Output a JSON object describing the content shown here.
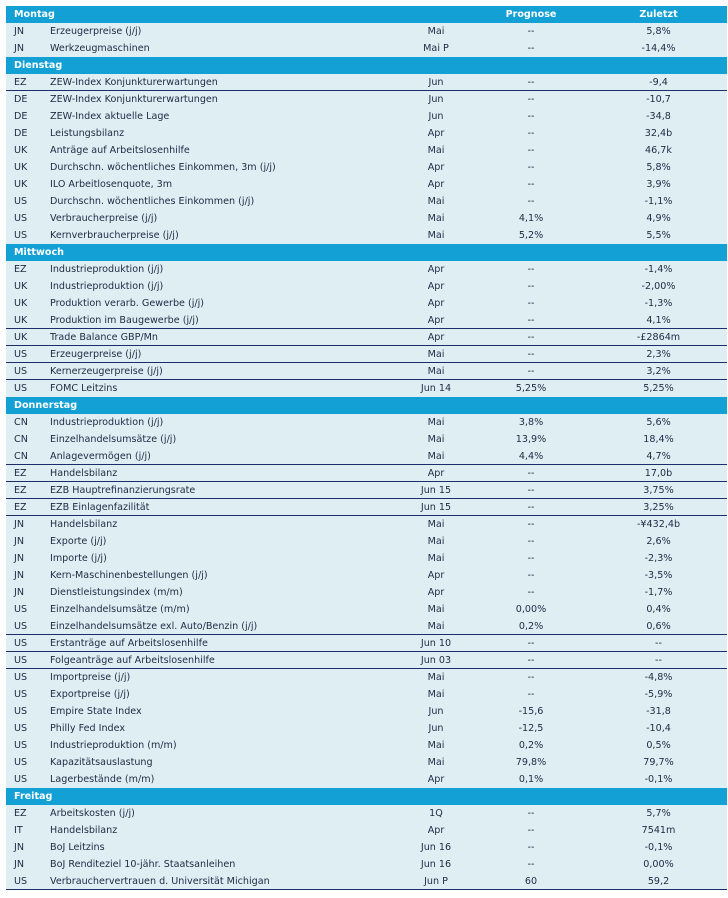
{
  "columns": {
    "prognose": "Prognose",
    "zuletzt": "Zuletzt"
  },
  "colors": {
    "header": "#13a0d4",
    "row_bg": "#deeef3",
    "separator": "#1c2d6b"
  },
  "days": [
    {
      "day": "Montag",
      "rows": [
        {
          "c": "JN",
          "n": "Erzeugerpreise (j/j)",
          "p": "Mai",
          "f": "--",
          "l": "5,8%"
        },
        {
          "c": "JN",
          "n": "Werkzeugmaschinen",
          "p": "Mai P",
          "f": "--",
          "l": "-14,4%"
        }
      ]
    },
    {
      "day": "Dienstag",
      "rows": [
        {
          "c": "EZ",
          "n": "ZEW-Index Konjunkturerwartungen",
          "p": "Jun",
          "f": "--",
          "l": "-9,4",
          "sep": true
        },
        {
          "c": "DE",
          "n": "ZEW-Index Konjunkturerwartungen",
          "p": "Jun",
          "f": "--",
          "l": "-10,7"
        },
        {
          "c": "DE",
          "n": "ZEW-Index aktuelle Lage",
          "p": "Jun",
          "f": "--",
          "l": "-34,8"
        },
        {
          "c": "DE",
          "n": "Leistungsbilanz",
          "p": "Apr",
          "f": "--",
          "l": "32,4b"
        },
        {
          "c": "UK",
          "n": "Anträge auf Arbeitslosenhilfe",
          "p": "Mai",
          "f": "--",
          "l": "46,7k"
        },
        {
          "c": "UK",
          "n": "Durchschn. wöchentliches Einkommen, 3m (j/j)",
          "p": "Apr",
          "f": "--",
          "l": "5,8%"
        },
        {
          "c": "UK",
          "n": "ILO Arbeitlosenquote, 3m",
          "p": "Apr",
          "f": "--",
          "l": "3,9%"
        },
        {
          "c": "US",
          "n": "Durchschn. wöchentliches Einkommen (j/j)",
          "p": "Mai",
          "f": "--",
          "l": "-1,1%"
        },
        {
          "c": "US",
          "n": "Verbraucherpreise (j/j)",
          "p": "Mai",
          "f": "4,1%",
          "l": "4,9%"
        },
        {
          "c": "US",
          "n": "Kernverbraucherpreise (j/j)",
          "p": "Mai",
          "f": "5,2%",
          "l": "5,5%"
        }
      ]
    },
    {
      "day": "Mittwoch",
      "rows": [
        {
          "c": "EZ",
          "n": "Industrieproduktion (j/j)",
          "p": "Apr",
          "f": "--",
          "l": "-1,4%"
        },
        {
          "c": "UK",
          "n": "Industrieproduktion (j/j)",
          "p": "Apr",
          "f": "--",
          "l": "-2,00%"
        },
        {
          "c": "UK",
          "n": "Produktion verarb. Gewerbe (j/j)",
          "p": "Apr",
          "f": "--",
          "l": "-1,3%"
        },
        {
          "c": "UK",
          "n": "Produktion im Baugewerbe (j/j)",
          "p": "Apr",
          "f": "--",
          "l": "4,1%",
          "sep": true
        },
        {
          "c": "UK",
          "n": "Trade Balance GBP/Mn",
          "p": "Apr",
          "f": "--",
          "l": "-£2864m",
          "sep": true
        },
        {
          "c": "US",
          "n": "Erzeugerpreise (j/j)",
          "p": "Mai",
          "f": "--",
          "l": "2,3%",
          "sep": true
        },
        {
          "c": "US",
          "n": "Kernerzeugerpreise (j/j)",
          "p": "Mai",
          "f": "--",
          "l": "3,2%",
          "sep": true
        },
        {
          "c": "US",
          "n": "FOMC Leitzins",
          "p": "Jun 14",
          "f": "5,25%",
          "l": "5,25%"
        }
      ]
    },
    {
      "day": "Donnerstag",
      "rows": [
        {
          "c": "CN",
          "n": "Industrieproduktion (j/j)",
          "p": "Mai",
          "f": "3,8%",
          "l": "5,6%"
        },
        {
          "c": "CN",
          "n": "Einzelhandelsumsätze (j/j)",
          "p": "Mai",
          "f": "13,9%",
          "l": "18,4%"
        },
        {
          "c": "CN",
          "n": "Anlagevermögen (j/j)",
          "p": "Mai",
          "f": "4,4%",
          "l": "4,7%",
          "sep": true
        },
        {
          "c": "EZ",
          "n": "Handelsbilanz",
          "p": "Apr",
          "f": "--",
          "l": "17,0b",
          "sep": true
        },
        {
          "c": "EZ",
          "n": "EZB Hauptrefinanzierungsrate",
          "p": "Jun 15",
          "f": "--",
          "l": "3,75%",
          "sep": true
        },
        {
          "c": "EZ",
          "n": "EZB Einlagenfazilität",
          "p": "Jun 15",
          "f": "--",
          "l": "3,25%",
          "sep": true
        },
        {
          "c": "JN",
          "n": "Handelsbilanz",
          "p": "Mai",
          "f": "--",
          "l": "-¥432,4b"
        },
        {
          "c": "JN",
          "n": "Exporte (j/j)",
          "p": "Mai",
          "f": "--",
          "l": "2,6%"
        },
        {
          "c": "JN",
          "n": "Importe (j/j)",
          "p": "Mai",
          "f": "--",
          "l": "-2,3%"
        },
        {
          "c": "JN",
          "n": "Kern-Maschinenbestellungen (j/j)",
          "p": "Apr",
          "f": "--",
          "l": "-3,5%"
        },
        {
          "c": "JN",
          "n": "Dienstleistungsindex (m/m)",
          "p": "Apr",
          "f": "--",
          "l": "-1,7%"
        },
        {
          "c": "US",
          "n": "Einzelhandelsumsätze (m/m)",
          "p": "Mai",
          "f": "0,00%",
          "l": "0,4%"
        },
        {
          "c": "US",
          "n": "Einzelhandelsumsätze exl. Auto/Benzin (j/j)",
          "p": "Mai",
          "f": "0,2%",
          "l": "0,6%",
          "sep": true
        },
        {
          "c": "US",
          "n": "Erstanträge auf Arbeitslosenhilfe",
          "p": "Jun 10",
          "f": "--",
          "l": "--",
          "sep": true
        },
        {
          "c": "US",
          "n": "Folgeanträge auf Arbeitslosenhilfe",
          "p": "Jun 03",
          "f": "--",
          "l": "--",
          "sep": true
        },
        {
          "c": "US",
          "n": "Importpreise (j/j)",
          "p": "Mai",
          "f": "--",
          "l": "-4,8%"
        },
        {
          "c": "US",
          "n": "Exportpreise (j/j)",
          "p": "Mai",
          "f": "--",
          "l": "-5,9%"
        },
        {
          "c": "US",
          "n": "Empire State Index",
          "p": "Jun",
          "f": "-15,6",
          "l": "-31,8"
        },
        {
          "c": "US",
          "n": "Philly Fed Index",
          "p": "Jun",
          "f": "-12,5",
          "l": "-10,4"
        },
        {
          "c": "US",
          "n": "Industrieproduktion (m/m)",
          "p": "Mai",
          "f": "0,2%",
          "l": "0,5%"
        },
        {
          "c": "US",
          "n": "Kapazitätsauslastung",
          "p": "Mai",
          "f": "79,8%",
          "l": "79,7%"
        },
        {
          "c": "US",
          "n": "Lagerbestände (m/m)",
          "p": "Apr",
          "f": "0,1%",
          "l": "-0,1%"
        }
      ]
    },
    {
      "day": "Freitag",
      "rows": [
        {
          "c": "EZ",
          "n": "Arbeitskosten (j/j)",
          "p": "1Q",
          "f": "--",
          "l": "5,7%"
        },
        {
          "c": "IT",
          "n": "Handelsbilanz",
          "p": "Apr",
          "f": "--",
          "l": "7541m"
        },
        {
          "c": "JN",
          "n": "BoJ Leitzins",
          "p": "Jun 16",
          "f": "--",
          "l": "-0,1%"
        },
        {
          "c": "JN",
          "n": "BoJ Renditeziel 10-jähr. Staatsanleihen",
          "p": "Jun 16",
          "f": "--",
          "l": "0,00%"
        },
        {
          "c": "US",
          "n": "Verbrauchervertrauen d. Universität Michigan",
          "p": "Jun P",
          "f": "60",
          "l": "59,2",
          "sep": true
        }
      ]
    }
  ]
}
